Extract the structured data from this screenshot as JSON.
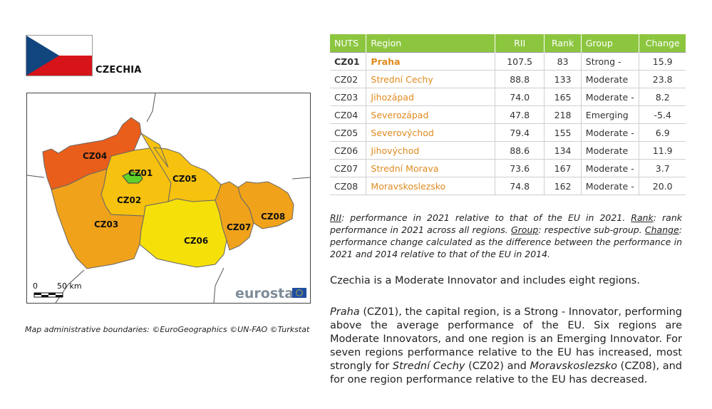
{
  "country": "CZECHIA",
  "map": {
    "region_labels": [
      "CZ01",
      "CZ02",
      "CZ03",
      "CZ04",
      "CZ05",
      "CZ06",
      "CZ07",
      "CZ08"
    ],
    "scale_zero": "0",
    "scale_distance": "50 km",
    "logo_text": "eurostat",
    "colors": {
      "strong": "#5fd12a",
      "moderate": "#f6c10f",
      "moderate_minus": "#f0a21b",
      "emerging": "#ea5e1b"
    }
  },
  "map_credit": "Map administrative boundaries: ©EuroGeographics ©UN-FAO ©Turkstat",
  "table": {
    "headers": [
      "NUTS",
      "Region",
      "RII",
      "Rank",
      "Group",
      "Change"
    ],
    "rows": [
      {
        "nuts": "CZ01",
        "region": "Praha",
        "rii": "107.5",
        "rank": "83",
        "group": "Strong -",
        "change": "15.9"
      },
      {
        "nuts": "CZ02",
        "region": "Strední Cechy",
        "rii": "88.8",
        "rank": "133",
        "group": "Moderate",
        "change": "23.8"
      },
      {
        "nuts": "CZ03",
        "region": "Jihozápad",
        "rii": "74.0",
        "rank": "165",
        "group": "Moderate -",
        "change": "8.2"
      },
      {
        "nuts": "CZ04",
        "region": "Severozápad",
        "rii": "47.8",
        "rank": "218",
        "group": "Emerging",
        "change": "-5.4"
      },
      {
        "nuts": "CZ05",
        "region": "Severovýchod",
        "rii": "79.4",
        "rank": "155",
        "group": "Moderate -",
        "change": "6.9"
      },
      {
        "nuts": "CZ06",
        "region": "Jihovýchod",
        "rii": "88.6",
        "rank": "134",
        "group": "Moderate",
        "change": "11.9"
      },
      {
        "nuts": "CZ07",
        "region": "Strední Morava",
        "rii": "73.6",
        "rank": "167",
        "group": "Moderate -",
        "change": "3.7"
      },
      {
        "nuts": "CZ08",
        "region": "Moravskoslezsko",
        "rii": "74.8",
        "rank": "162",
        "group": "Moderate -",
        "change": "20.0"
      }
    ]
  },
  "note": {
    "t1": "RII",
    "t2": ": performance in 2021 relative to that of the EU in 2021. ",
    "t3": "Rank",
    "t4": ": rank performance in 2021 across all regions. ",
    "t5": "Group",
    "t6": ": respective sub-group. ",
    "t7": "Change",
    "t8": ": performance change calculated as the difference between the performance in 2021 and 2014 relative to that of the EU in 2014."
  },
  "summary": "Czechia is a Moderate Innovator and includes eight regions.",
  "paragraph": {
    "p1": "Praha",
    "p2": " (CZ01), the capital region, is a Strong - Innovator, performing above the average performance of the EU. Six regions are Moderate Innovators, and one region is an Emerging Innovator. For seven regions performance relative to the EU has increased, most strongly for ",
    "p3": "Strední Cechy",
    "p4": " (CZ02) and ",
    "p5": "Moravskoslezsko",
    "p6": " (CZ08), and for one region performance relative to the EU has decreased."
  }
}
